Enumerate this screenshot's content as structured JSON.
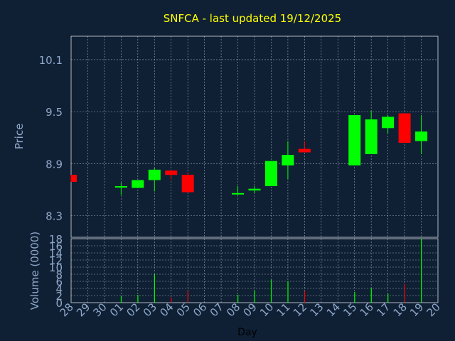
{
  "title": "SNFCA - last updated 19/12/2025",
  "colors": {
    "background": "#0f2035",
    "title": "#ffff00",
    "axis_text": "#8fa8c8",
    "up": "#00ff00",
    "down": "#ff0000",
    "grid": "#ffffff"
  },
  "chart_data": [
    {
      "type": "candlestick",
      "ylabel": "Price",
      "ylim": [
        8.05,
        10.37
      ],
      "yticks": [
        "10.1",
        "9.5",
        "8.9",
        "8.3"
      ],
      "grid": true,
      "categories": [
        "28",
        "29",
        "30",
        "01",
        "02",
        "03",
        "04",
        "05",
        "06",
        "07",
        "08",
        "09",
        "10",
        "11",
        "12",
        "13",
        "14",
        "15",
        "16",
        "17",
        "18",
        "19",
        "20"
      ],
      "candles": [
        {
          "day": "28",
          "open": 8.77,
          "close": 8.69,
          "high": 8.77,
          "low": 8.69
        },
        {
          "day": "01",
          "open": 8.64,
          "close": 8.64,
          "high": 8.68,
          "low": 8.54
        },
        {
          "day": "02",
          "open": 8.62,
          "close": 8.71,
          "high": 8.71,
          "low": 8.62
        },
        {
          "day": "03",
          "open": 8.71,
          "close": 8.83,
          "high": 8.85,
          "low": 8.58
        },
        {
          "day": "04",
          "open": 8.82,
          "close": 8.77,
          "high": 8.82,
          "low": 8.71
        },
        {
          "day": "05",
          "open": 8.77,
          "close": 8.57,
          "high": 8.8,
          "low": 8.57
        },
        {
          "day": "08",
          "open": 8.56,
          "close": 8.56,
          "high": 8.64,
          "low": 8.54
        },
        {
          "day": "09",
          "open": 8.59,
          "close": 8.61,
          "high": 8.64,
          "low": 8.56
        },
        {
          "day": "10",
          "open": 8.64,
          "close": 8.93,
          "high": 8.93,
          "low": 8.64
        },
        {
          "day": "11",
          "open": 8.88,
          "close": 9.0,
          "high": 9.16,
          "low": 8.72
        },
        {
          "day": "12",
          "open": 9.07,
          "close": 9.03,
          "high": 9.16,
          "low": 9.03
        },
        {
          "day": "15",
          "open": 8.88,
          "close": 9.46,
          "high": 9.46,
          "low": 8.88
        },
        {
          "day": "16",
          "open": 9.01,
          "close": 9.41,
          "high": 9.51,
          "low": 9.01
        },
        {
          "day": "17",
          "open": 9.31,
          "close": 9.44,
          "high": 9.46,
          "low": 9.25
        },
        {
          "day": "18",
          "open": 9.48,
          "close": 9.14,
          "high": 9.48,
          "low": 9.14
        },
        {
          "day": "19",
          "open": 9.16,
          "close": 9.27,
          "high": 9.46,
          "low": 9.01
        }
      ]
    },
    {
      "type": "bar",
      "ylabel": "Volume (0000)",
      "xlabel": "Day",
      "ylim": [
        0,
        18
      ],
      "yticks": [
        "18",
        "16",
        "14",
        "12",
        "10",
        "8",
        "6",
        "4",
        "2",
        "0"
      ],
      "categories": [
        "28",
        "29",
        "30",
        "01",
        "02",
        "03",
        "04",
        "05",
        "06",
        "07",
        "08",
        "09",
        "10",
        "11",
        "12",
        "13",
        "14",
        "15",
        "16",
        "17",
        "18",
        "19",
        "20"
      ],
      "bars": [
        {
          "day": "01",
          "value": 1.8,
          "dir": "up"
        },
        {
          "day": "02",
          "value": 2.2,
          "dir": "up"
        },
        {
          "day": "03",
          "value": 8.0,
          "dir": "up"
        },
        {
          "day": "04",
          "value": 1.5,
          "dir": "down"
        },
        {
          "day": "05",
          "value": 3.3,
          "dir": "down"
        },
        {
          "day": "08",
          "value": 2.2,
          "dir": "up"
        },
        {
          "day": "09",
          "value": 3.5,
          "dir": "up"
        },
        {
          "day": "10",
          "value": 6.5,
          "dir": "up"
        },
        {
          "day": "11",
          "value": 6.0,
          "dir": "up"
        },
        {
          "day": "12",
          "value": 3.3,
          "dir": "down"
        },
        {
          "day": "15",
          "value": 3.0,
          "dir": "up"
        },
        {
          "day": "16",
          "value": 4.0,
          "dir": "up"
        },
        {
          "day": "17",
          "value": 2.5,
          "dir": "up"
        },
        {
          "day": "18",
          "value": 5.3,
          "dir": "down"
        },
        {
          "day": "19",
          "value": 18.0,
          "dir": "up"
        }
      ]
    }
  ]
}
